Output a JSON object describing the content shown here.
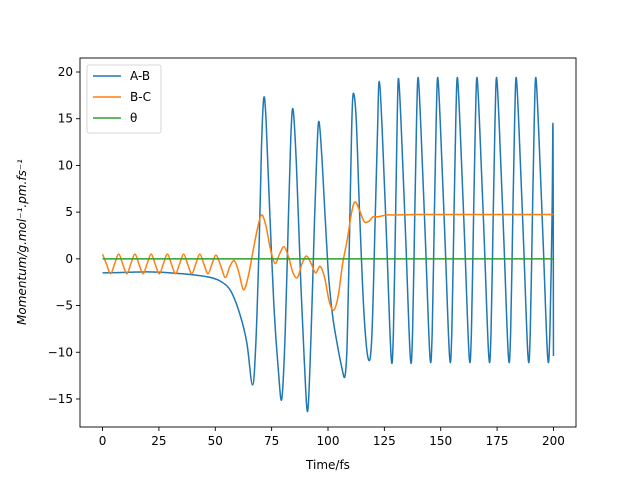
{
  "chart_data": {
    "type": "line",
    "title": "",
    "xlabel": "Time/fs",
    "ylabel": "Momentum/g.mol⁻¹.pm.fs⁻¹",
    "xlim": [
      -10,
      210
    ],
    "ylim": [
      -18,
      21.5
    ],
    "xticks": [
      0,
      25,
      50,
      75,
      100,
      125,
      150,
      175,
      200
    ],
    "yticks": [
      -15,
      -10,
      -5,
      0,
      5,
      10,
      15,
      20
    ],
    "grid": false,
    "legend_position": "top-left",
    "series": [
      {
        "name": "A-B",
        "color": "#1f77b4",
        "points": [
          [
            0,
            -1.5
          ],
          [
            10,
            -1.45
          ],
          [
            20,
            -1.4
          ],
          [
            30,
            -1.5
          ],
          [
            40,
            -1.7
          ],
          [
            48,
            -2.0
          ],
          [
            53,
            -2.5
          ],
          [
            57,
            -3.5
          ],
          [
            61,
            -6.0
          ],
          [
            64,
            -9.0
          ],
          [
            66.5,
            -13.5
          ],
          [
            68,
            -9.0
          ],
          [
            69.5,
            2.0
          ],
          [
            70.5,
            12.0
          ],
          [
            71.5,
            17.2
          ],
          [
            72.5,
            15.0
          ],
          [
            74,
            6.0
          ],
          [
            76,
            -5.0
          ],
          [
            78,
            -12.0
          ],
          [
            79.5,
            -15.0
          ],
          [
            81,
            -8.0
          ],
          [
            82.5,
            5.0
          ],
          [
            83.5,
            13.0
          ],
          [
            84.5,
            16.0
          ],
          [
            86,
            10.0
          ],
          [
            88,
            -3.0
          ],
          [
            89.5,
            -11.0
          ],
          [
            91,
            -16.3
          ],
          [
            92.5,
            -8.0
          ],
          [
            94,
            4.0
          ],
          [
            95,
            11.0
          ],
          [
            96,
            14.7
          ],
          [
            97.5,
            10.0
          ],
          [
            100,
            -1.0
          ],
          [
            102,
            -6.0
          ],
          [
            104,
            -9.0
          ],
          [
            106,
            -11.5
          ],
          [
            107.5,
            -12.6
          ],
          [
            108.5,
            -9.0
          ],
          [
            109.5,
            2.0
          ],
          [
            110.5,
            14.0
          ],
          [
            111.2,
            17.7
          ],
          [
            112.5,
            15.0
          ],
          [
            114,
            5.0
          ],
          [
            116,
            -6.0
          ],
          [
            118,
            -10.8
          ],
          [
            119.5,
            -8.0
          ],
          [
            121,
            5.0
          ],
          [
            122,
            14.0
          ],
          [
            122.7,
            19.0
          ],
          [
            124,
            14.0
          ],
          [
            126,
            2.0
          ],
          [
            128,
            -10.5
          ],
          [
            129,
            -8.0
          ],
          [
            130,
            5.0
          ],
          [
            130.7,
            15.0
          ],
          [
            131.3,
            19.3
          ],
          [
            132.5,
            14.0
          ],
          [
            134.5,
            2.0
          ],
          [
            136.5,
            -10.5
          ],
          [
            137.5,
            -8.0
          ],
          [
            138.5,
            5.0
          ],
          [
            139.3,
            15.0
          ],
          [
            140,
            19.4
          ],
          [
            141.2,
            14.0
          ],
          [
            143.2,
            2.0
          ],
          [
            145.2,
            -10.4
          ],
          [
            146.2,
            -8.0
          ],
          [
            147.2,
            5.0
          ],
          [
            148,
            15.0
          ],
          [
            148.7,
            19.4
          ],
          [
            149.9,
            14.0
          ],
          [
            151.9,
            2.0
          ],
          [
            153.9,
            -10.4
          ],
          [
            154.9,
            -8.0
          ],
          [
            155.9,
            5.0
          ],
          [
            156.7,
            15.0
          ],
          [
            157.4,
            19.4
          ],
          [
            158.6,
            14.0
          ],
          [
            160.6,
            2.0
          ],
          [
            162.6,
            -10.4
          ],
          [
            163.6,
            -8.0
          ],
          [
            164.6,
            5.0
          ],
          [
            165.4,
            15.0
          ],
          [
            166.1,
            19.4
          ],
          [
            167.3,
            14.0
          ],
          [
            169.3,
            2.0
          ],
          [
            171.3,
            -10.4
          ],
          [
            172.3,
            -8.0
          ],
          [
            173.3,
            5.0
          ],
          [
            174.1,
            15.0
          ],
          [
            174.8,
            19.4
          ],
          [
            176,
            14.0
          ],
          [
            178,
            2.0
          ],
          [
            180,
            -10.4
          ],
          [
            181,
            -8.0
          ],
          [
            182,
            5.0
          ],
          [
            182.8,
            15.0
          ],
          [
            183.5,
            19.4
          ],
          [
            184.7,
            14.0
          ],
          [
            186.7,
            2.0
          ],
          [
            188.7,
            -10.4
          ],
          [
            189.7,
            -8.0
          ],
          [
            190.7,
            5.0
          ],
          [
            191.5,
            15.0
          ],
          [
            192.2,
            19.4
          ],
          [
            193.4,
            14.0
          ],
          [
            195.4,
            2.0
          ],
          [
            197.4,
            -10.4
          ],
          [
            198.4,
            -8.0
          ],
          [
            199.4,
            5.0
          ],
          [
            199.8,
            14.0
          ],
          [
            200,
            -10.4
          ]
        ]
      },
      {
        "name": "B-C",
        "color": "#ff7f0e",
        "points": [
          [
            0,
            0.5
          ],
          [
            1.8,
            -0.6
          ],
          [
            3.6,
            -1.6
          ],
          [
            5.4,
            -0.5
          ],
          [
            7.2,
            0.5
          ],
          [
            9.0,
            -0.6
          ],
          [
            10.8,
            -1.6
          ],
          [
            12.6,
            -0.5
          ],
          [
            14.4,
            0.5
          ],
          [
            16.2,
            -0.6
          ],
          [
            18.0,
            -1.6
          ],
          [
            19.8,
            -0.5
          ],
          [
            21.6,
            0.5
          ],
          [
            23.4,
            -0.6
          ],
          [
            25.2,
            -1.6
          ],
          [
            27.0,
            -0.5
          ],
          [
            28.8,
            0.5
          ],
          [
            30.6,
            -0.6
          ],
          [
            32.4,
            -1.6
          ],
          [
            34.2,
            -0.5
          ],
          [
            36.0,
            0.5
          ],
          [
            37.8,
            -0.6
          ],
          [
            39.6,
            -1.6
          ],
          [
            41.4,
            -0.5
          ],
          [
            43.2,
            0.5
          ],
          [
            45.0,
            -0.6
          ],
          [
            46.8,
            -1.6
          ],
          [
            48.6,
            -0.5
          ],
          [
            50.4,
            0.4
          ],
          [
            52.5,
            -0.8
          ],
          [
            54.5,
            -2.0
          ],
          [
            56.5,
            -0.8
          ],
          [
            58.5,
            -0.2
          ],
          [
            60.5,
            -1.5
          ],
          [
            62.5,
            -3.3
          ],
          [
            64.5,
            -2.0
          ],
          [
            66.5,
            0.5
          ],
          [
            68.5,
            3.0
          ],
          [
            70.5,
            4.7
          ],
          [
            72.5,
            3.5
          ],
          [
            74.5,
            1.0
          ],
          [
            76.5,
            -0.5
          ],
          [
            78.5,
            0.5
          ],
          [
            80.5,
            1.3
          ],
          [
            82.5,
            0.2
          ],
          [
            84.5,
            -1.5
          ],
          [
            86.5,
            -2.0
          ],
          [
            88.5,
            -0.5
          ],
          [
            90.5,
            0.3
          ],
          [
            92.5,
            -0.5
          ],
          [
            94.5,
            -1.5
          ],
          [
            96.5,
            -0.8
          ],
          [
            98.5,
            -2.0
          ],
          [
            100.5,
            -4.5
          ],
          [
            102.5,
            -5.5
          ],
          [
            104.5,
            -4.0
          ],
          [
            106.5,
            -0.5
          ],
          [
            108.5,
            2.0
          ],
          [
            110.5,
            5.0
          ],
          [
            112,
            6.1
          ],
          [
            114,
            5.2
          ],
          [
            116,
            4.0
          ],
          [
            118,
            4.0
          ],
          [
            120,
            4.5
          ],
          [
            122,
            4.5
          ],
          [
            124,
            4.6
          ],
          [
            126,
            4.7
          ],
          [
            130,
            4.7
          ],
          [
            140,
            4.75
          ],
          [
            160,
            4.75
          ],
          [
            180,
            4.75
          ],
          [
            200,
            4.75
          ]
        ]
      },
      {
        "name": "θ",
        "color": "#2ca02c",
        "points": [
          [
            0,
            0
          ],
          [
            200,
            0
          ]
        ]
      }
    ]
  }
}
